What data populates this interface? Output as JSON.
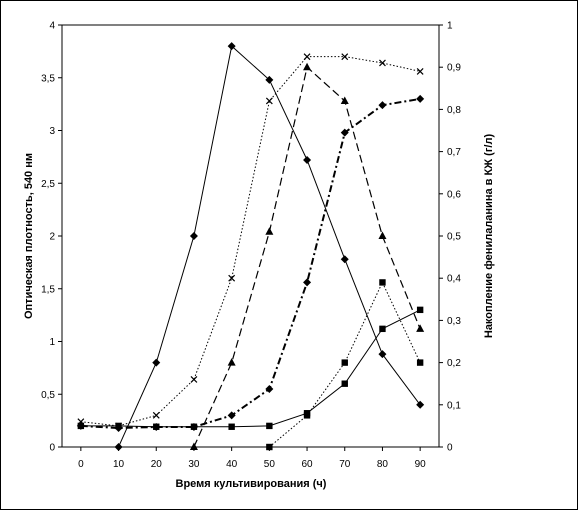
{
  "chart_data": {
    "type": "line",
    "title": "",
    "xlabel": "Время культивирования (ч)",
    "ylabel": "Оптическая плотность, 540 нм",
    "y2label": "Накопление фенилаланина в КЖ (г/л)",
    "x_ticks": [
      "0",
      "10",
      "20",
      "30",
      "40",
      "50",
      "60",
      "70",
      "80",
      "90"
    ],
    "y_ticks": [
      "0",
      "0,5",
      "1",
      "1,5",
      "2",
      "2,5",
      "3",
      "3,5",
      "4"
    ],
    "y2_ticks": [
      "0",
      "0,1",
      "0,2",
      "0,3",
      "0,4",
      "0,5",
      "0,6",
      "0,7",
      "0,8",
      "0,9",
      "1"
    ],
    "xlim": [
      -5,
      95
    ],
    "ylim": [
      0,
      4
    ],
    "y2lim": [
      0,
      1
    ],
    "grid": false,
    "legend": "none",
    "series": [
      {
        "axis": "left",
        "style": "solid",
        "marker": "diamond",
        "x": [
          10,
          20,
          30,
          40,
          50,
          60,
          70,
          80,
          90
        ],
        "y": [
          0.0,
          0.8,
          2.0,
          3.8,
          3.48,
          2.72,
          1.78,
          0.88,
          0.4
        ]
      },
      {
        "axis": "right",
        "style": "dotted",
        "marker": "x",
        "x": [
          0,
          10,
          20,
          30,
          40,
          50,
          60,
          70,
          80,
          90
        ],
        "y": [
          0.06,
          0.05,
          0.075,
          0.16,
          0.4,
          0.82,
          0.925,
          0.925,
          0.91,
          0.89
        ]
      },
      {
        "axis": "right",
        "style": "long-dash",
        "marker": "triangle",
        "x": [
          30,
          40,
          50,
          60,
          70,
          80,
          90
        ],
        "y": [
          0.0,
          0.2,
          0.51,
          0.9,
          0.82,
          0.5,
          0.28
        ]
      },
      {
        "axis": "left",
        "style": "dash-dot",
        "marker": "diamond",
        "x": [
          0,
          10,
          20,
          30,
          40,
          50,
          60,
          70,
          80,
          90
        ],
        "y": [
          0.2,
          0.18,
          0.19,
          0.19,
          0.3,
          0.55,
          1.56,
          2.98,
          3.24,
          3.3
        ]
      },
      {
        "axis": "right",
        "style": "solid",
        "marker": "square",
        "x": [
          0,
          10,
          20,
          30,
          40,
          50,
          60,
          70,
          80,
          90
        ],
        "y": [
          0.05,
          0.05,
          0.048,
          0.048,
          0.048,
          0.05,
          0.08,
          0.15,
          0.28,
          0.325
        ]
      },
      {
        "axis": "right",
        "style": "dotted",
        "marker": "square",
        "x": [
          50,
          60,
          70,
          80,
          90
        ],
        "y": [
          0.0,
          0.075,
          0.2,
          0.39,
          0.2
        ]
      }
    ]
  }
}
